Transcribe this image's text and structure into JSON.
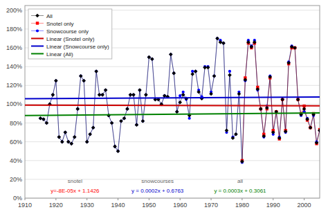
{
  "chart_data": {
    "type": "line",
    "xlim": [
      1910,
      2005
    ],
    "ylim": [
      0,
      2.05
    ],
    "xticks": [
      1910,
      1920,
      1930,
      1940,
      1950,
      1960,
      1970,
      1980,
      1990,
      2000
    ],
    "yticks": [
      {
        "value": 0.0,
        "label": "0%"
      },
      {
        "value": 0.2,
        "label": "20%"
      },
      {
        "value": 0.4,
        "label": "40%"
      },
      {
        "value": 0.6,
        "label": "60%"
      },
      {
        "value": 0.8,
        "label": "80%"
      },
      {
        "value": 1.0,
        "label": "100%"
      },
      {
        "value": 1.2,
        "label": "120%"
      },
      {
        "value": 1.4,
        "label": "140%"
      },
      {
        "value": 1.6,
        "label": "160%"
      },
      {
        "value": 1.8,
        "label": "180%"
      },
      {
        "value": 2.0,
        "label": "200%"
      }
    ],
    "grid": true,
    "legend": "upper left",
    "series": [
      {
        "name": "All",
        "color": "#000000",
        "marker": "diamond",
        "line_style": "solid",
        "x": [
          1915,
          1916,
          1917,
          1918,
          1919,
          1920,
          1921,
          1922,
          1923,
          1924,
          1925,
          1926,
          1927,
          1928,
          1929,
          1930,
          1931,
          1932,
          1933,
          1934,
          1935,
          1936,
          1937,
          1938,
          1939,
          1940,
          1941,
          1942,
          1943,
          1944,
          1945,
          1946,
          1947,
          1948,
          1949,
          1950,
          1951,
          1952,
          1953,
          1954,
          1955,
          1956,
          1957,
          1958,
          1959,
          1960,
          1961,
          1962,
          1963,
          1964,
          1965,
          1966,
          1967,
          1968,
          1969,
          1970,
          1971,
          1972,
          1973,
          1974,
          1975,
          1976,
          1977,
          1978,
          1979,
          1980,
          1981,
          1982,
          1983,
          1984,
          1985,
          1986,
          1987,
          1988,
          1989,
          1990,
          1991,
          1992,
          1993,
          1994,
          1995,
          1996,
          1997,
          1998,
          1999,
          2000,
          2001,
          2002,
          2003,
          2004,
          2005
        ],
        "values": [
          0.85,
          0.84,
          0.8,
          1.0,
          1.1,
          1.25,
          0.65,
          0.6,
          0.7,
          0.6,
          0.58,
          0.65,
          0.95,
          1.3,
          1.25,
          0.6,
          0.68,
          0.75,
          1.35,
          1.1,
          1.1,
          1.15,
          0.88,
          0.8,
          0.55,
          0.5,
          0.82,
          0.85,
          0.95,
          1.1,
          1.1,
          0.78,
          1.15,
          0.82,
          1.1,
          1.5,
          1.48,
          1.05,
          1.05,
          1.0,
          1.09,
          1.08,
          1.53,
          1.33,
          0.92,
          1.02,
          1.1,
          1.06,
          0.88,
          1.32,
          1.35,
          1.13,
          1.06,
          1.39,
          1.39,
          1.11,
          1.3,
          1.7,
          1.66,
          1.65,
          0.72,
          1.31,
          0.64,
          0.68,
          1.11,
          0.39,
          1.26,
          1.66,
          1.61,
          1.66,
          1.16,
          0.95,
          0.66,
          0.96,
          1.29,
          0.7,
          0.92,
          0.64,
          1.05,
          0.71,
          1.44,
          1.61,
          1.6,
          1.05,
          0.89,
          0.95,
          0.84,
          0.75,
          0.89,
          0.59,
          0.72
        ]
      },
      {
        "name": "Snotel only",
        "color": "#ff0000",
        "marker": "square",
        "line_style": "solid",
        "x": [
          1980,
          1981,
          1982,
          1983,
          1984,
          1985,
          1986,
          1987,
          1988,
          1989,
          1990,
          1991,
          1992,
          1993,
          1994,
          1995,
          1996,
          1997,
          1998,
          1999,
          2000,
          2001,
          2002,
          2003,
          2004,
          2005
        ],
        "values": [
          0.4,
          1.28,
          1.65,
          1.6,
          1.65,
          1.18,
          0.95,
          0.68,
          0.95,
          1.28,
          0.72,
          0.92,
          0.63,
          1.05,
          0.72,
          1.43,
          1.6,
          1.6,
          1.05,
          0.9,
          0.98,
          0.83,
          0.75,
          0.9,
          0.58,
          0.73
        ]
      },
      {
        "name": "Snowcourse only",
        "color": "#0000ff",
        "marker": "circle",
        "line_style": "solid",
        "x": [
          1915,
          1916,
          1917,
          1918,
          1919,
          1920,
          1921,
          1922,
          1923,
          1924,
          1925,
          1926,
          1927,
          1928,
          1929,
          1930,
          1931,
          1932,
          1933,
          1934,
          1935,
          1936,
          1937,
          1938,
          1939,
          1940,
          1941,
          1942,
          1943,
          1944,
          1945,
          1946,
          1947,
          1948,
          1949,
          1950,
          1951,
          1952,
          1953,
          1954,
          1955,
          1956,
          1957,
          1958,
          1959,
          1960,
          1961,
          1962,
          1963,
          1964,
          1965,
          1966,
          1967,
          1968,
          1969,
          1970,
          1971,
          1972,
          1973,
          1974,
          1975,
          1976,
          1977,
          1978,
          1979,
          1980,
          1981,
          1982,
          1983,
          1984,
          1985,
          1986,
          1987,
          1988,
          1989,
          1990,
          1991,
          1992,
          1993,
          1994,
          1995,
          1996,
          1997,
          1998,
          1999,
          2000,
          2001,
          2002,
          2003,
          2004,
          2005
        ],
        "values": [
          0.85,
          0.84,
          0.8,
          1.0,
          1.1,
          1.25,
          0.65,
          0.6,
          0.7,
          0.6,
          0.58,
          0.65,
          0.95,
          1.3,
          1.25,
          0.6,
          0.68,
          0.75,
          1.35,
          1.1,
          1.1,
          1.15,
          0.88,
          0.8,
          0.55,
          0.5,
          0.82,
          0.85,
          0.95,
          1.1,
          1.1,
          0.78,
          1.15,
          0.82,
          1.1,
          1.5,
          1.48,
          1.05,
          1.05,
          1.0,
          1.09,
          1.08,
          1.53,
          1.33,
          0.92,
          1.09,
          1.13,
          1.05,
          0.85,
          1.35,
          1.35,
          1.15,
          1.08,
          1.4,
          1.4,
          1.13,
          1.3,
          1.7,
          1.68,
          1.65,
          0.7,
          1.35,
          0.65,
          0.68,
          1.13,
          0.38,
          1.25,
          1.68,
          1.62,
          1.68,
          1.15,
          0.95,
          0.65,
          0.98,
          1.3,
          0.68,
          0.92,
          0.65,
          1.05,
          0.7,
          1.45,
          1.62,
          1.6,
          1.05,
          0.88,
          0.92,
          0.85,
          0.75,
          0.88,
          0.6,
          0.72
        ]
      },
      {
        "name": "Linear (Snotel only)",
        "color": "#cc0000",
        "marker": "none",
        "line_style": "solid",
        "x": [
          1910,
          2005
        ],
        "values": [
          0.9898,
          0.9822
        ]
      },
      {
        "name": "Linear (Snowcourse only)",
        "color": "#0000cc",
        "marker": "none",
        "line_style": "solid",
        "x": [
          1910,
          2005
        ],
        "values": [
          1.0583,
          1.0773
        ]
      },
      {
        "name": "Linear (All)",
        "color": "#008000",
        "marker": "none",
        "line_style": "solid",
        "x": [
          1910,
          2005
        ],
        "values": [
          0.8791,
          0.9076
        ]
      }
    ],
    "annotations": [
      {
        "text": "snotel",
        "color": "#666666"
      },
      {
        "text": "snowcourses",
        "color": "#666666"
      },
      {
        "text": "all",
        "color": "#666666"
      },
      {
        "text": "y=-8E-05x + 1.1426",
        "color": "#ff0000"
      },
      {
        "text": "y = 0.0002x + 0.6763",
        "color": "#0000cc"
      },
      {
        "text": "y = 0.0003x + 0.3061",
        "color": "#008000"
      }
    ]
  }
}
